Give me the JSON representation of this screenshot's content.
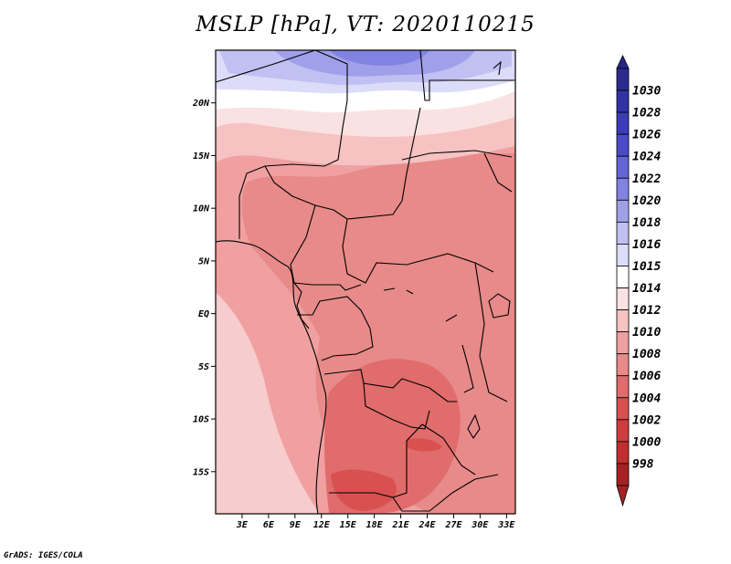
{
  "title": "MSLP [hPa], VT: 2020110215",
  "credit": "GrADS: IGES/COLA",
  "map": {
    "lon_range": [
      0,
      34
    ],
    "lat_range": [
      -19,
      25
    ],
    "lat_ticks": [
      {
        "value": 20,
        "label": "20N"
      },
      {
        "value": 15,
        "label": "15N"
      },
      {
        "value": 10,
        "label": "10N"
      },
      {
        "value": 5,
        "label": "5N"
      },
      {
        "value": 0,
        "label": "EQ"
      },
      {
        "value": -5,
        "label": "5S"
      },
      {
        "value": -10,
        "label": "10S"
      },
      {
        "value": -15,
        "label": "15S"
      }
    ],
    "lon_ticks": [
      {
        "value": 3,
        "label": "3E"
      },
      {
        "value": 6,
        "label": "6E"
      },
      {
        "value": 9,
        "label": "9E"
      },
      {
        "value": 12,
        "label": "12E"
      },
      {
        "value": 15,
        "label": "15E"
      },
      {
        "value": 18,
        "label": "18E"
      },
      {
        "value": 21,
        "label": "21E"
      },
      {
        "value": 24,
        "label": "24E"
      },
      {
        "value": 27,
        "label": "27E"
      },
      {
        "value": 30,
        "label": "30E"
      },
      {
        "value": 33,
        "label": "33E"
      }
    ]
  },
  "colorbar": {
    "levels": [
      {
        "label": "1030",
        "color": "#2b2b8f"
      },
      {
        "label": "1028",
        "color": "#3232a6"
      },
      {
        "label": "1026",
        "color": "#3b3bba"
      },
      {
        "label": "1024",
        "color": "#4b4bc9"
      },
      {
        "label": "1022",
        "color": "#6464d7"
      },
      {
        "label": "1020",
        "color": "#8282e2"
      },
      {
        "label": "1018",
        "color": "#a0a0ea"
      },
      {
        "label": "1016",
        "color": "#c0c0f2"
      },
      {
        "label": "1015",
        "color": "#dcdcf8"
      },
      {
        "label": "1014",
        "color": "#ffffff"
      },
      {
        "label": "1012",
        "color": "#fbe2e2"
      },
      {
        "label": "1010",
        "color": "#f6c2c2"
      },
      {
        "label": "1008",
        "color": "#f0a0a0"
      },
      {
        "label": "1006",
        "color": "#e88a8a"
      },
      {
        "label": "1004",
        "color": "#e06c6c"
      },
      {
        "label": "1002",
        "color": "#d85050"
      },
      {
        "label": "1000",
        "color": "#ce3c3c"
      },
      {
        "label": "998",
        "color": "#c02e2e"
      },
      {
        "label": "",
        "color": "#a62222"
      }
    ],
    "top_color": "#25258a"
  },
  "fill_colors": {
    "ocean_south": "#f7cccc",
    "base": "#f0a0a0",
    "interior": "#e88a8a",
    "south_low": "#e06c6c",
    "deep_low": "#d85050",
    "north_light": "#f6c2c2",
    "north_pale": "#fbe2e2",
    "white_band": "#ffffff",
    "high_1015": "#dcdcf8",
    "high_1016": "#c0c0f2",
    "high_1018": "#a0a0ea",
    "high_1020": "#8282e2"
  }
}
